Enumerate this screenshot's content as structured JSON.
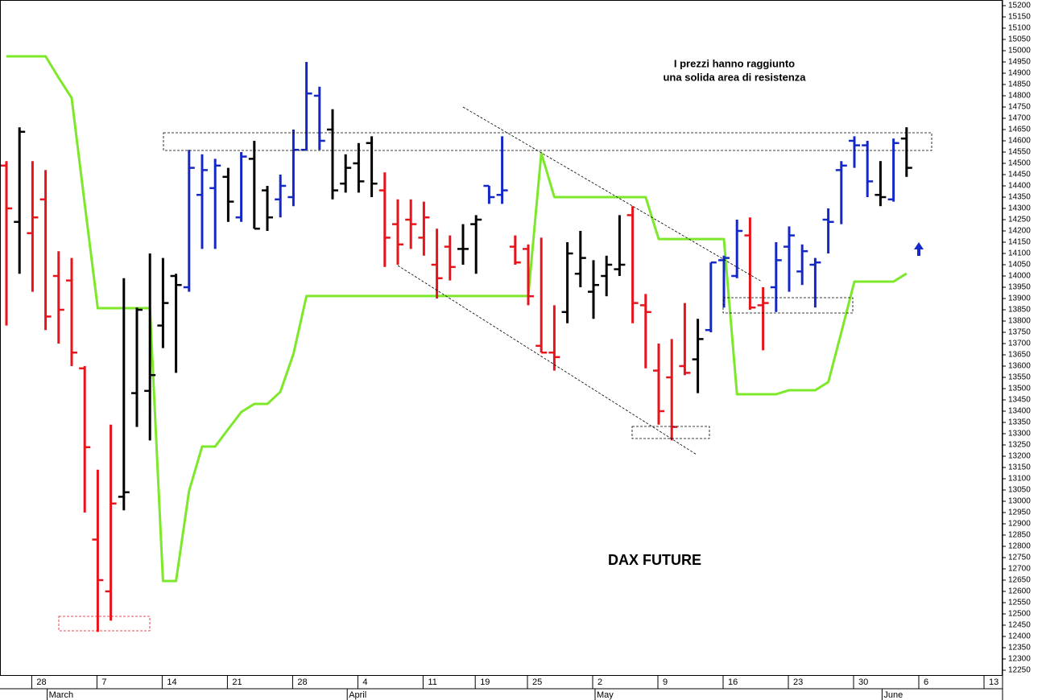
{
  "chart_data": {
    "type": "ohlc",
    "title": "DAX FUTURE",
    "annotations": [
      "I prezzi hanno raggiunto",
      "una solida area di resistenza"
    ],
    "ylim": [
      12250,
      15200
    ],
    "yticks": [
      12250,
      12300,
      12350,
      12400,
      12450,
      12500,
      12550,
      12600,
      12650,
      12700,
      12750,
      12800,
      12850,
      12900,
      12950,
      13000,
      13050,
      13100,
      13150,
      13200,
      13250,
      13300,
      13350,
      13400,
      13450,
      13500,
      13550,
      13600,
      13650,
      13700,
      13750,
      13800,
      13850,
      13900,
      13950,
      14000,
      14050,
      14100,
      14150,
      14200,
      14250,
      14300,
      14350,
      14400,
      14450,
      14500,
      14550,
      14600,
      14650,
      14700,
      14750,
      14800,
      14850,
      14900,
      14950,
      15000,
      15050,
      15100,
      15150,
      15200
    ],
    "categories": [
      null,
      null,
      "28",
      null,
      null,
      null,
      null,
      "7",
      null,
      null,
      null,
      null,
      "14",
      null,
      null,
      null,
      null,
      "21",
      null,
      null,
      null,
      null,
      "28",
      null,
      null,
      null,
      null,
      "4",
      null,
      null,
      null,
      null,
      "11",
      null,
      null,
      null,
      "19",
      null,
      null,
      null,
      "25",
      null,
      null,
      null,
      null,
      "2",
      null,
      null,
      null,
      null,
      "9",
      null,
      null,
      null,
      null,
      "16",
      null,
      null,
      null,
      null,
      "23",
      null,
      null,
      null,
      null,
      "30",
      null,
      null,
      null,
      null,
      "6",
      null,
      null,
      null,
      null,
      "13",
      null
    ],
    "months": [
      {
        "name": "March",
        "start": 3
      },
      {
        "name": "April",
        "start": 26
      },
      {
        "name": "May",
        "start": 45
      },
      {
        "name": "June",
        "start": 67
      }
    ],
    "bars": [
      {
        "o": 14490,
        "h": 14510,
        "l": 13780,
        "c": 14300,
        "color": "#e8141c"
      },
      {
        "o": 14240,
        "h": 14660,
        "l": 14010,
        "c": 14640,
        "color": "#000000"
      },
      {
        "o": 14190,
        "h": 14510,
        "l": 13930,
        "c": 14260,
        "color": "#e8141c"
      },
      {
        "o": 14340,
        "h": 14470,
        "l": 13760,
        "c": 13820,
        "color": "#e8141c"
      },
      {
        "o": 14000,
        "h": 14110,
        "l": 13700,
        "c": 13850,
        "color": "#e8141c"
      },
      {
        "o": 13980,
        "h": 14080,
        "l": 13600,
        "c": 13660,
        "color": "#e8141c"
      },
      {
        "o": 13590,
        "h": 13600,
        "l": 12950,
        "c": 13240,
        "color": "#e8141c"
      },
      {
        "o": 12830,
        "h": 13140,
        "l": 12420,
        "c": 12650,
        "color": "#e8141c"
      },
      {
        "o": 12600,
        "h": 13340,
        "l": 12470,
        "c": 12990,
        "color": "#e8141c"
      },
      {
        "o": 13020,
        "h": 13990,
        "l": 12960,
        "c": 13040,
        "color": "#000000"
      },
      {
        "o": 13480,
        "h": 13860,
        "l": 13330,
        "c": 13850,
        "color": "#000000"
      },
      {
        "o": 13490,
        "h": 14100,
        "l": 13270,
        "c": 13560,
        "color": "#000000"
      },
      {
        "o": 13780,
        "h": 14080,
        "l": 13680,
        "c": 13880,
        "color": "#000000"
      },
      {
        "o": 14000,
        "h": 14010,
        "l": 13570,
        "c": 13960,
        "color": "#000000"
      },
      {
        "o": 13950,
        "h": 14560,
        "l": 13930,
        "c": 14480,
        "color": "#1428c8"
      },
      {
        "o": 14360,
        "h": 14540,
        "l": 14120,
        "c": 14470,
        "color": "#1428c8"
      },
      {
        "o": 14390,
        "h": 14520,
        "l": 14120,
        "c": 14490,
        "color": "#1428c8"
      },
      {
        "o": 14440,
        "h": 14480,
        "l": 14240,
        "c": 14330,
        "color": "#000000"
      },
      {
        "o": 14260,
        "h": 14550,
        "l": 14240,
        "c": 14530,
        "color": "#1428c8"
      },
      {
        "o": 14520,
        "h": 14600,
        "l": 14210,
        "c": 14210,
        "color": "#000000"
      },
      {
        "o": 14380,
        "h": 14400,
        "l": 14200,
        "c": 14260,
        "color": "#000000"
      },
      {
        "o": 14340,
        "h": 14450,
        "l": 14260,
        "c": 14400,
        "color": "#1428c8"
      },
      {
        "o": 14350,
        "h": 14650,
        "l": 14310,
        "c": 14560,
        "color": "#1428c8"
      },
      {
        "o": 14560,
        "h": 14950,
        "l": 14560,
        "c": 14810,
        "color": "#1428c8"
      },
      {
        "o": 14800,
        "h": 14840,
        "l": 14560,
        "c": 14600,
        "color": "#1428c8"
      },
      {
        "o": 14650,
        "h": 14740,
        "l": 14340,
        "c": 14380,
        "color": "#000000"
      },
      {
        "o": 14410,
        "h": 14540,
        "l": 14370,
        "c": 14480,
        "color": "#000000"
      },
      {
        "o": 14500,
        "h": 14590,
        "l": 14370,
        "c": 14420,
        "color": "#000000"
      },
      {
        "o": 14590,
        "h": 14620,
        "l": 14350,
        "c": 14410,
        "color": "#000000"
      },
      {
        "o": 14380,
        "h": 14460,
        "l": 14040,
        "c": 14170,
        "color": "#e8141c"
      },
      {
        "o": 14230,
        "h": 14340,
        "l": 14050,
        "c": 14140,
        "color": "#e8141c"
      },
      {
        "o": 14250,
        "h": 14340,
        "l": 14120,
        "c": 14230,
        "color": "#e8141c"
      },
      {
        "o": 14170,
        "h": 14330,
        "l": 14090,
        "c": 14260,
        "color": "#e8141c"
      },
      {
        "o": 14050,
        "h": 14210,
        "l": 13900,
        "c": 13990,
        "color": "#e8141c"
      },
      {
        "o": 14130,
        "h": 14180,
        "l": 13980,
        "c": 14040,
        "color": "#e8141c"
      },
      {
        "o": 14120,
        "h": 14230,
        "l": 14050,
        "c": 14120,
        "color": "#000000"
      },
      {
        "o": 14230,
        "h": 14270,
        "l": 14010,
        "c": 14250,
        "color": "#000000"
      },
      {
        "o": 14400,
        "h": 14400,
        "l": 14320,
        "c": 14350,
        "color": "#1428c8"
      },
      {
        "o": 14360,
        "h": 14620,
        "l": 14320,
        "c": 14380,
        "color": "#1428c8"
      },
      {
        "o": 14130,
        "h": 14180,
        "l": 14050,
        "c": 14060,
        "color": "#e8141c"
      },
      {
        "o": 14120,
        "h": 14140,
        "l": 13870,
        "c": 13910,
        "color": "#e8141c"
      },
      {
        "o": 13690,
        "h": 14170,
        "l": 13660,
        "c": 13660,
        "color": "#e8141c"
      },
      {
        "o": 13660,
        "h": 13870,
        "l": 13580,
        "c": 13640,
        "color": "#e8141c"
      },
      {
        "o": 13840,
        "h": 14150,
        "l": 13790,
        "c": 14100,
        "color": "#000000"
      },
      {
        "o": 14010,
        "h": 14200,
        "l": 13950,
        "c": 14080,
        "color": "#000000"
      },
      {
        "o": 13930,
        "h": 14070,
        "l": 13810,
        "c": 13960,
        "color": "#000000"
      },
      {
        "o": 14000,
        "h": 14090,
        "l": 13910,
        "c": 14050,
        "color": "#000000"
      },
      {
        "o": 14030,
        "h": 14270,
        "l": 14000,
        "c": 14050,
        "color": "#000000"
      },
      {
        "o": 14270,
        "h": 14310,
        "l": 13790,
        "c": 13880,
        "color": "#e8141c"
      },
      {
        "o": 13870,
        "h": 13920,
        "l": 13590,
        "c": 13840,
        "color": "#e8141c"
      },
      {
        "o": 13580,
        "h": 13700,
        "l": 13340,
        "c": 13400,
        "color": "#e8141c"
      },
      {
        "o": 13550,
        "h": 13720,
        "l": 13270,
        "c": 13330,
        "color": "#e8141c"
      },
      {
        "o": 13600,
        "h": 13880,
        "l": 13560,
        "c": 13570,
        "color": "#e8141c"
      },
      {
        "o": 13630,
        "h": 13810,
        "l": 13480,
        "c": 13720,
        "color": "#000000"
      },
      {
        "o": 13760,
        "h": 14060,
        "l": 13750,
        "c": 14060,
        "color": "#1428c8"
      },
      {
        "o": 14070,
        "h": 14090,
        "l": 13860,
        "c": 14080,
        "color": "#1428c8"
      },
      {
        "o": 14000,
        "h": 14250,
        "l": 13990,
        "c": 14200,
        "color": "#1428c8"
      },
      {
        "o": 14180,
        "h": 14260,
        "l": 13850,
        "c": 13860,
        "color": "#e8141c"
      },
      {
        "o": 13870,
        "h": 13950,
        "l": 13670,
        "c": 13880,
        "color": "#e8141c"
      },
      {
        "o": 13950,
        "h": 14150,
        "l": 13840,
        "c": 14070,
        "color": "#1428c8"
      },
      {
        "o": 14130,
        "h": 14220,
        "l": 13930,
        "c": 14180,
        "color": "#1428c8"
      },
      {
        "o": 14020,
        "h": 14140,
        "l": 13960,
        "c": 14110,
        "color": "#1428c8"
      },
      {
        "o": 14050,
        "h": 14080,
        "l": 13860,
        "c": 14060,
        "color": "#1428c8"
      },
      {
        "o": 14250,
        "h": 14300,
        "l": 14100,
        "c": 14240,
        "color": "#1428c8"
      },
      {
        "o": 14470,
        "h": 14510,
        "l": 14230,
        "c": 14490,
        "color": "#1428c8"
      },
      {
        "o": 14600,
        "h": 14620,
        "l": 14480,
        "c": 14580,
        "color": "#1428c8"
      },
      {
        "o": 14580,
        "h": 14600,
        "l": 14350,
        "c": 14420,
        "color": "#1428c8"
      },
      {
        "o": 14360,
        "h": 14510,
        "l": 14310,
        "c": 14350,
        "color": "#000000"
      },
      {
        "o": 14340,
        "h": 14610,
        "l": 14330,
        "c": 14590,
        "color": "#1428c8"
      },
      {
        "o": 14610,
        "h": 14660,
        "l": 14440,
        "c": 14480,
        "color": "#000000"
      },
      null,
      null,
      null,
      null,
      null,
      null,
      null
    ],
    "stop_line": {
      "color": "#7de82a",
      "values": [
        14975,
        14975,
        14975,
        14975,
        14880,
        14790,
        14320,
        13857,
        13857,
        13857,
        13857,
        13857,
        12646,
        12646,
        13046,
        13243,
        13243,
        13320,
        13396,
        13432,
        13432,
        13486,
        13654,
        13911,
        13911,
        13911,
        13911,
        13911,
        13911,
        13911,
        13911,
        13911,
        13911,
        13911,
        13911,
        13911,
        13911,
        13911,
        13911,
        13911,
        13911,
        14546,
        14350,
        14350,
        14350,
        14350,
        14350,
        14350,
        14350,
        14350,
        14164,
        14164,
        14164,
        14164,
        14164,
        14164,
        13475,
        13475,
        13475,
        13475,
        13493,
        13493,
        13493,
        13529,
        13750,
        13975,
        13975,
        13975,
        13975,
        14011,
        null,
        null,
        null,
        null,
        null,
        null,
        null
      ]
    }
  }
}
